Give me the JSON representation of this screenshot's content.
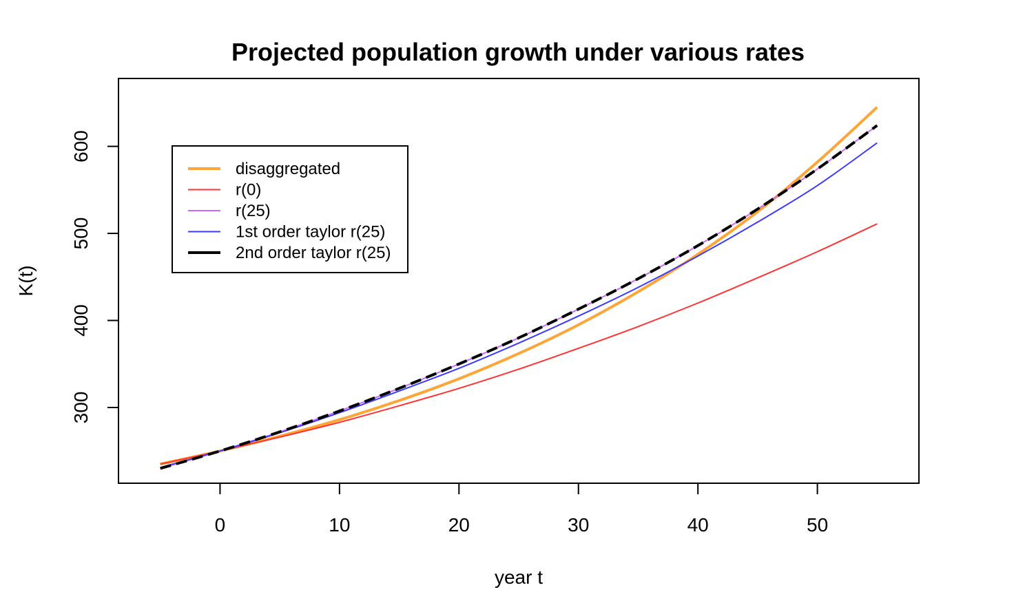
{
  "chart_data": {
    "type": "line",
    "title": "Projected population growth under various rates",
    "xlabel": "year t",
    "ylabel": "K(t)",
    "xlim": [
      -8.5,
      58.5
    ],
    "ylim": [
      213,
      678
    ],
    "x_ticks": [
      0,
      10,
      20,
      30,
      40,
      50
    ],
    "y_ticks": [
      300,
      400,
      500,
      600
    ],
    "grid": false,
    "legend_position": "top-left",
    "x": [
      -5,
      0,
      5,
      10,
      15,
      20,
      25,
      30,
      35,
      40,
      45,
      50,
      55
    ],
    "series": [
      {
        "name": "disaggregated",
        "color": "#FFA537",
        "dash": "solid",
        "width": 4,
        "values": [
          235,
          250,
          267,
          286,
          308,
          333,
          362,
          395,
          433,
          476,
          525,
          582,
          645
        ]
      },
      {
        "name": "r(0)",
        "color": "#FF3333",
        "dash": "solid",
        "width": 2,
        "values": [
          235,
          250,
          266,
          283,
          302,
          322,
          344,
          368,
          393,
          420,
          449,
          479,
          511
        ]
      },
      {
        "name": "r(25)",
        "color": "#CC66FF",
        "dash": "solid",
        "width": 2,
        "values": [
          230,
          250,
          272,
          296,
          322,
          350,
          380,
          413,
          448,
          486,
          528,
          574,
          624
        ]
      },
      {
        "name": "1st order taylor r(25)",
        "color": "#3A3AFF",
        "dash": "solid",
        "width": 2,
        "values": [
          231,
          250,
          271,
          294,
          319,
          345,
          374,
          405,
          438,
          474,
          513,
          555,
          604
        ]
      },
      {
        "name": "2nd order taylor r(25)",
        "color": "#000000",
        "dash": "dashed",
        "width": 4,
        "values": [
          230,
          250,
          272,
          296,
          322,
          350,
          380,
          413,
          448,
          486,
          528,
          574,
          624
        ]
      }
    ]
  }
}
